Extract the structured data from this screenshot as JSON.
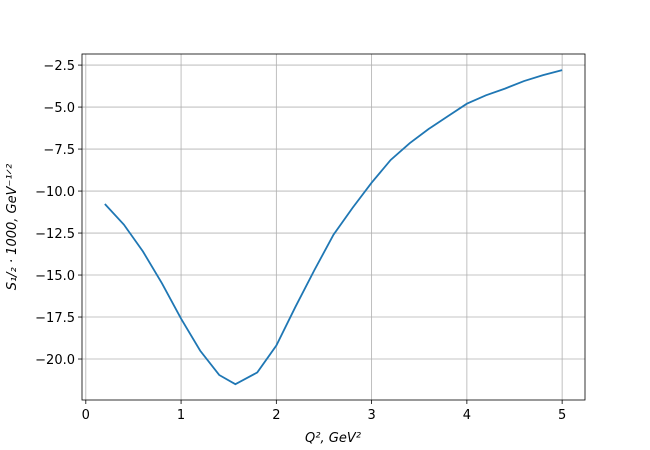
{
  "chart_data": {
    "type": "line",
    "xlabel": "Q², GeV²",
    "ylabel": "S₁/₂ · 1000, GeV⁻¹ᐟ²",
    "x": [
      0.2,
      0.4,
      0.6,
      0.8,
      1.0,
      1.2,
      1.4,
      1.57,
      1.8,
      2.0,
      2.2,
      2.4,
      2.6,
      2.8,
      3.0,
      3.2,
      3.4,
      3.6,
      3.8,
      4.0,
      4.2,
      4.4,
      4.6,
      4.8,
      5.0
    ],
    "series": [
      {
        "color": "#1f77b4",
        "values": [
          -10.77,
          -12.0,
          -13.6,
          -15.5,
          -17.6,
          -19.5,
          -20.95,
          -21.5,
          -20.8,
          -19.2,
          -16.9,
          -14.7,
          -12.6,
          -11.0,
          -9.5,
          -8.15,
          -7.15,
          -6.3,
          -5.55,
          -4.8,
          -4.3,
          -3.9,
          -3.45,
          -3.1,
          -2.8
        ]
      }
    ],
    "xlim": [
      -0.04,
      5.24
    ],
    "ylim": [
      -22.44,
      -1.84
    ],
    "xticks": [
      0,
      1,
      2,
      3,
      4,
      5
    ],
    "yticks": [
      {
        "value": -2.5,
        "label": "−2.5"
      },
      {
        "value": -5,
        "label": "−5.0"
      },
      {
        "value": -7.5,
        "label": "−7.5"
      },
      {
        "value": -10,
        "label": "−10.0"
      },
      {
        "value": -12.5,
        "label": "−12.5"
      },
      {
        "value": -15,
        "label": "−15.0"
      },
      {
        "value": -17.5,
        "label": "−17.5"
      },
      {
        "value": -20,
        "label": "−20.0"
      }
    ],
    "grid": true
  }
}
